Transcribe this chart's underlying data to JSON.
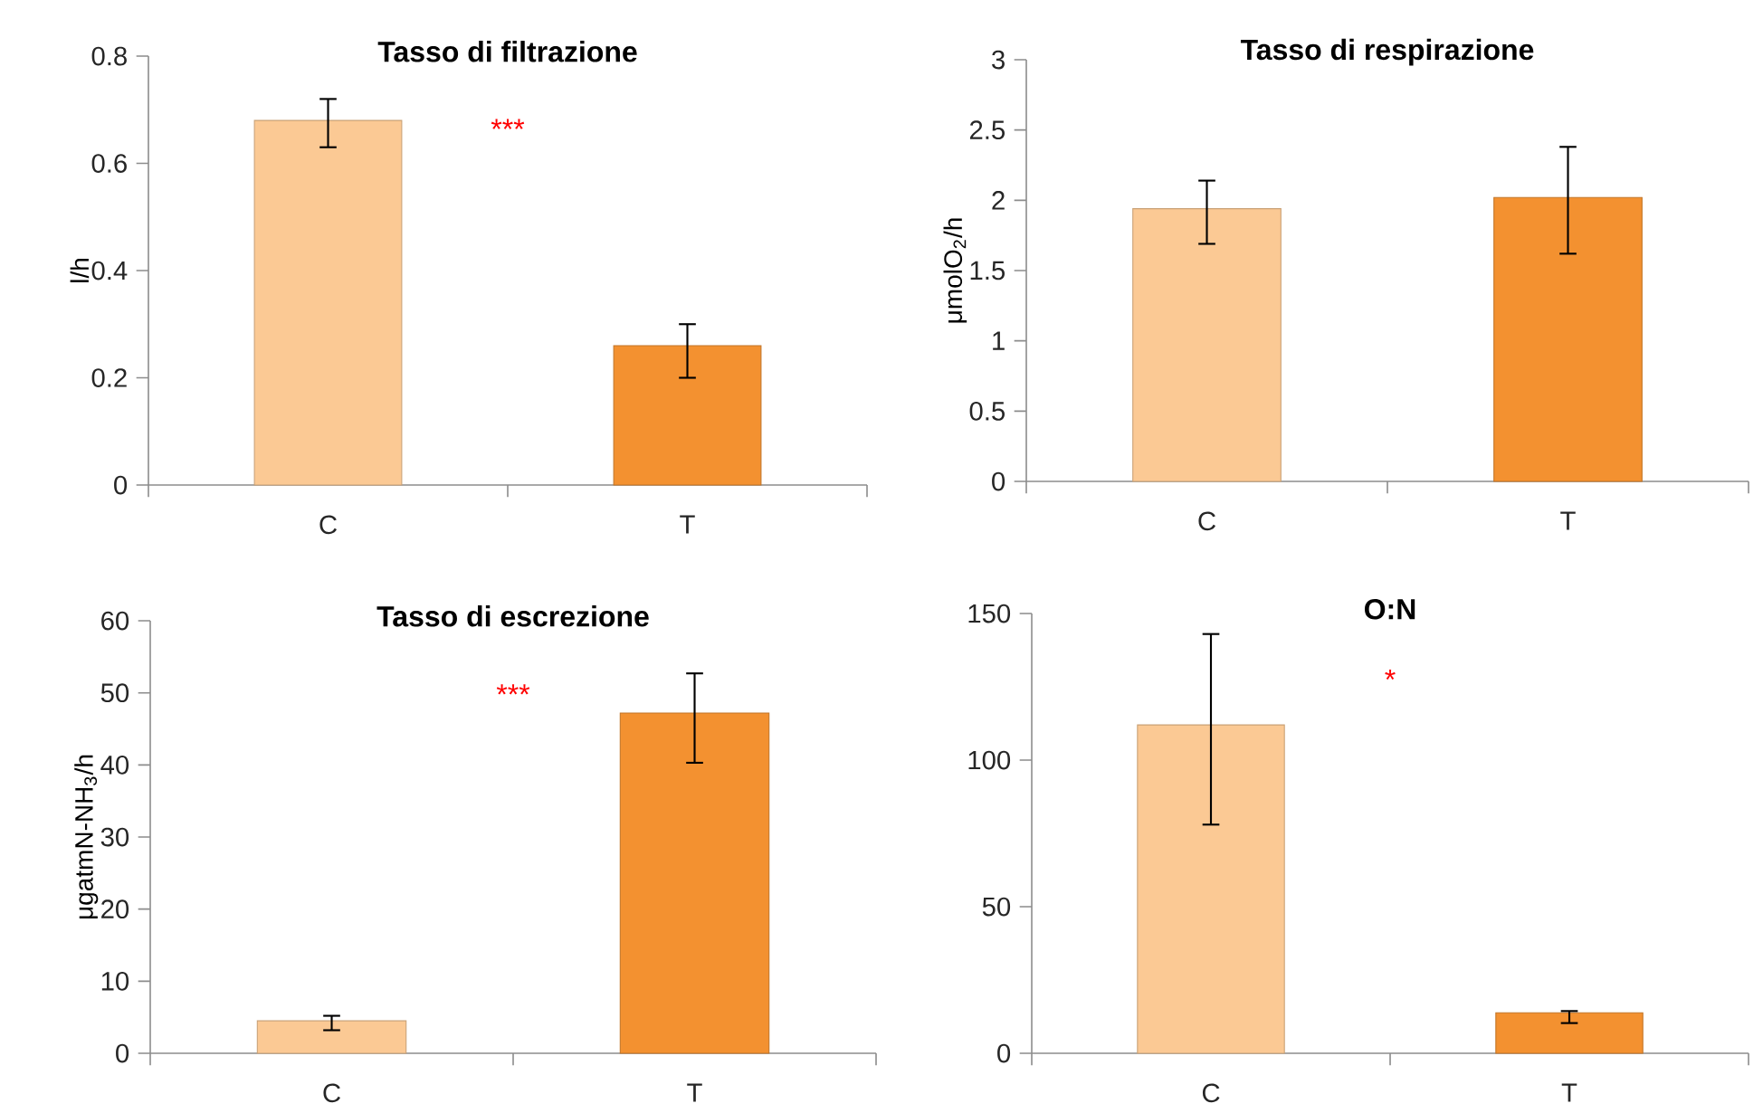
{
  "chart_data": [
    {
      "type": "bar",
      "title": "Tasso di filtrazione",
      "ylabel": "l/h",
      "categories": [
        "C",
        "T"
      ],
      "values": [
        0.68,
        0.26
      ],
      "colors": [
        "#fbc994",
        "#f39130"
      ],
      "errors": [
        [
          0.63,
          0.72
        ],
        [
          0.2,
          0.3
        ]
      ],
      "ylim": [
        0,
        0.8
      ],
      "yticks": [
        0,
        0.2,
        0.4,
        0.6,
        0.8
      ],
      "annotations": [
        "***"
      ]
    },
    {
      "type": "bar",
      "title": "Tasso di respirazione",
      "ylabel": "μmolO$_{2}$/h",
      "categories": [
        "C",
        "T"
      ],
      "values": [
        1.94,
        2.02
      ],
      "colors": [
        "#fbc994",
        "#f39130"
      ],
      "errors": [
        [
          1.69,
          2.14
        ],
        [
          1.62,
          2.38
        ]
      ],
      "ylim": [
        0,
        3
      ],
      "yticks": [
        0,
        0.5,
        1,
        1.5,
        2,
        2.5,
        3
      ]
    },
    {
      "type": "bar",
      "title": "Tasso di escrezione",
      "ylabel": "μgatmN-NH$_{3}$/h",
      "categories": [
        "C",
        "T"
      ],
      "values": [
        4.5,
        47.2
      ],
      "colors": [
        "#fbc994",
        "#f39130"
      ],
      "errors": [
        [
          3.2,
          5.2
        ],
        [
          40.3,
          52.7
        ]
      ],
      "ylim": [
        0,
        60
      ],
      "yticks": [
        0,
        10,
        20,
        30,
        40,
        50,
        60
      ],
      "annotations": [
        "***"
      ]
    },
    {
      "type": "bar",
      "title": "O:N",
      "categories": [
        "C",
        "T"
      ],
      "values": [
        112,
        13.8
      ],
      "colors": [
        "#fbc994",
        "#f39130"
      ],
      "errors": [
        [
          78,
          143
        ],
        [
          10.3,
          14.4
        ]
      ],
      "ylim": [
        0,
        150
      ],
      "yticks": [
        0,
        50,
        100,
        150
      ],
      "annotations": [
        "*"
      ]
    }
  ]
}
